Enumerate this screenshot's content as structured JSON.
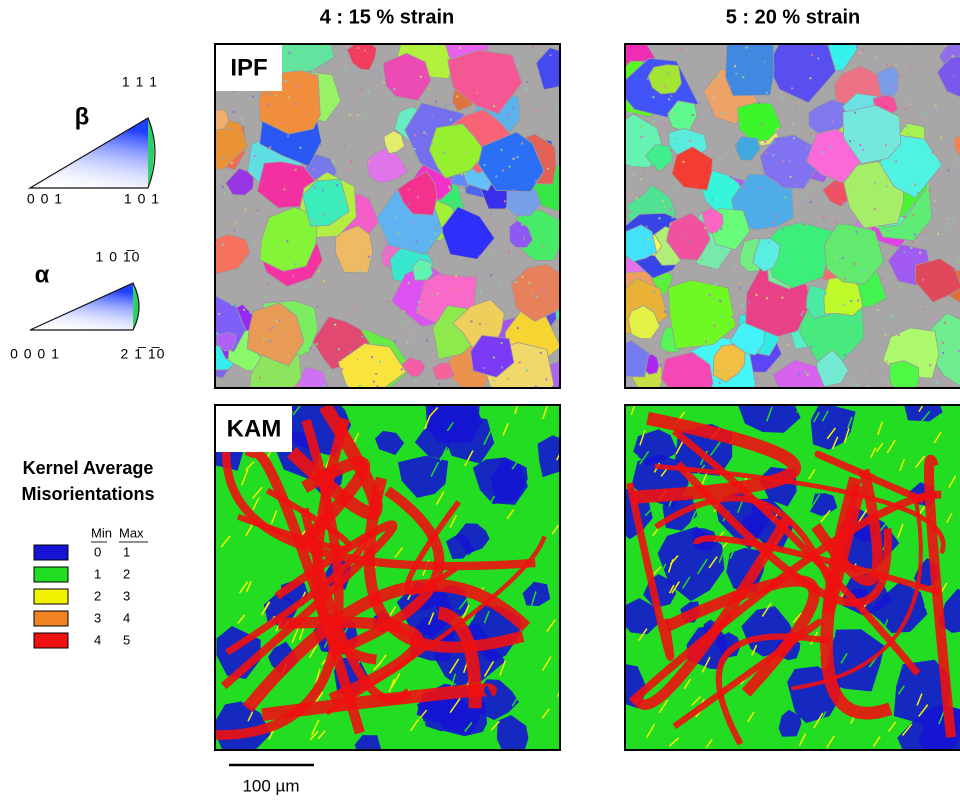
{
  "columns": [
    {
      "title": "4 : 15 % strain"
    },
    {
      "title": "5 : 20 % strain"
    }
  ],
  "panel_labels": {
    "ipf": "IPF",
    "kam": "KAM"
  },
  "ipf_legend": {
    "beta": {
      "symbol": "β",
      "top": "1 1 1",
      "left": "0 0 1",
      "right": "1 0 1"
    },
    "alpha": {
      "symbol": "α",
      "top": "1 0  1̅0",
      "left": "0 0 0 1",
      "right": "2  1̅  1̅0"
    }
  },
  "kam_legend": {
    "title_lines": [
      "Kernel Average",
      "Misorientations"
    ],
    "min_header": "Min",
    "max_header": "Max",
    "rows": [
      {
        "min": 0,
        "max": 1,
        "color": "#1414d2"
      },
      {
        "min": 1,
        "max": 2,
        "color": "#22dd22"
      },
      {
        "min": 2,
        "max": 3,
        "color": "#f2f200"
      },
      {
        "min": 3,
        "max": 4,
        "color": "#f08222"
      },
      {
        "min": 4,
        "max": 5,
        "color": "#ee1111"
      }
    ]
  },
  "scale_bar": "100 µm"
}
